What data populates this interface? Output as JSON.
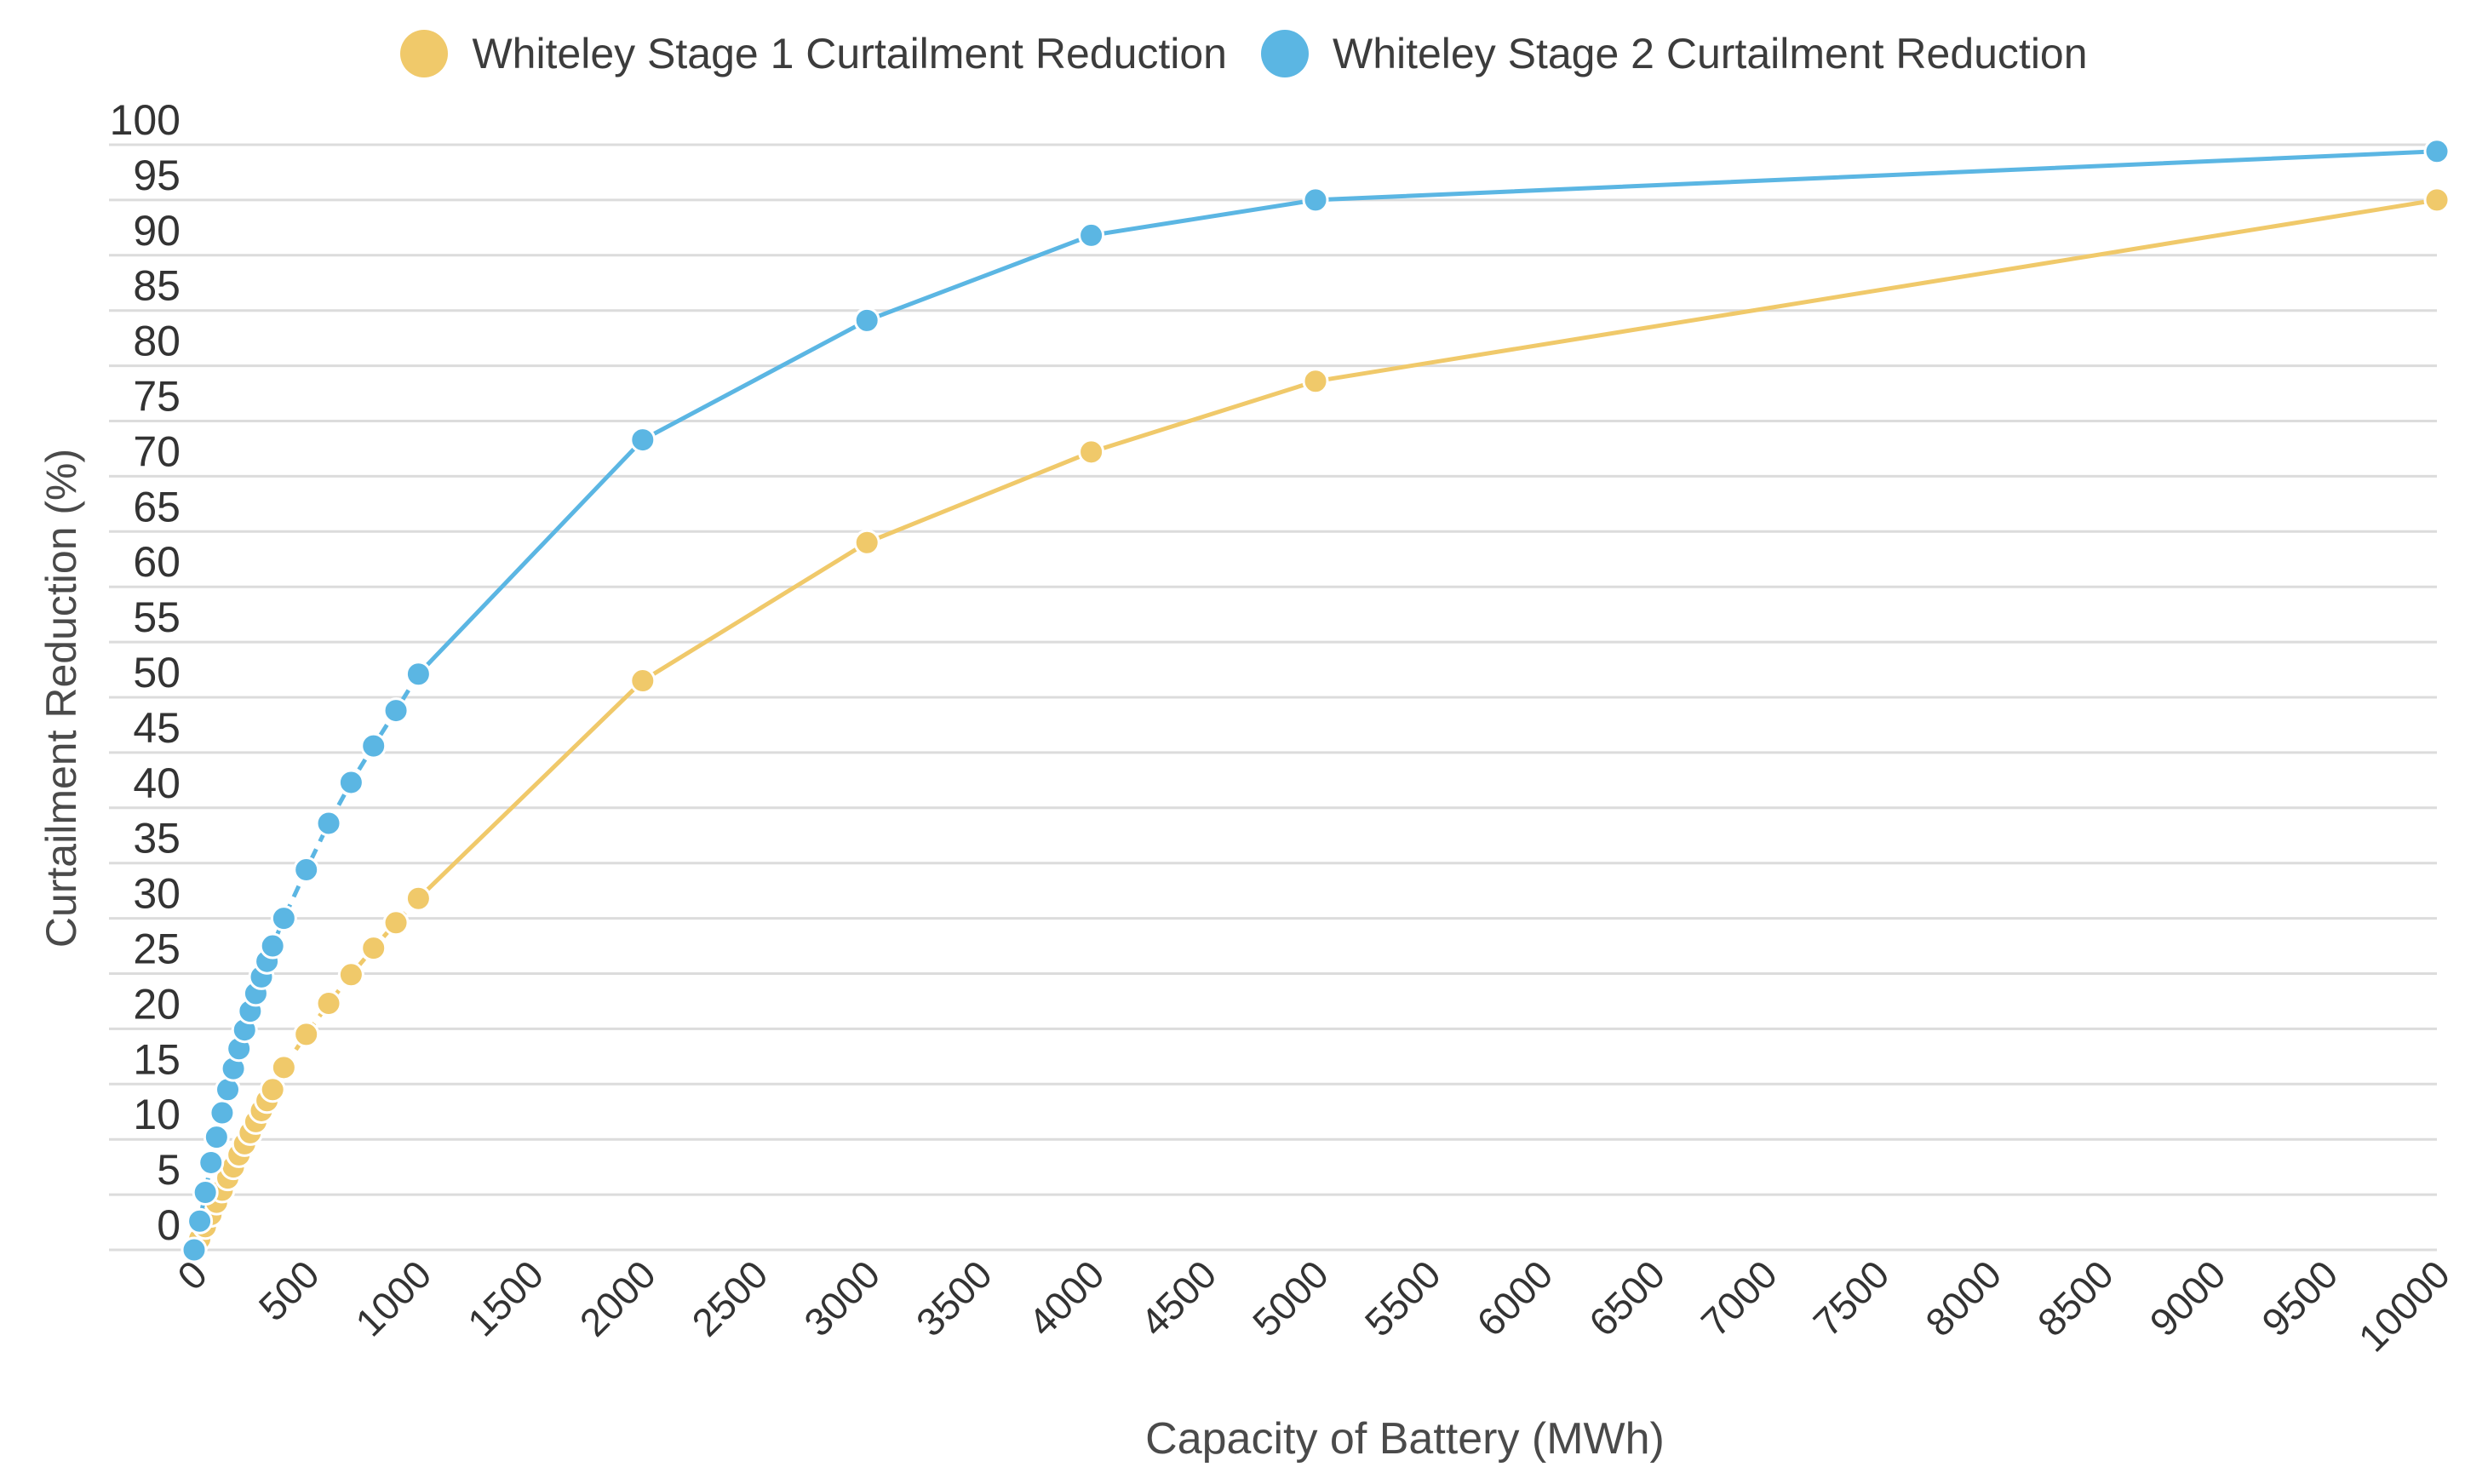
{
  "chart_data": {
    "type": "line",
    "title": "",
    "xlabel": "Capacity of Battery (MWh)",
    "ylabel": "Curtailment Reduction (%)",
    "xlim": [
      0,
      10000
    ],
    "ylim": [
      0,
      100
    ],
    "x_ticks": [
      "0",
      "500",
      "1000",
      "1500",
      "2000",
      "2500",
      "3000",
      "3500",
      "4000",
      "4500",
      "5000",
      "5500",
      "6000",
      "6500",
      "7000",
      "7500",
      "8000",
      "8500",
      "9000",
      "9500",
      "10000"
    ],
    "y_ticks": [
      "0",
      "5",
      "10",
      "15",
      "20",
      "25",
      "30",
      "35",
      "40",
      "45",
      "50",
      "55",
      "60",
      "65",
      "70",
      "75",
      "80",
      "85",
      "90",
      "95",
      "100"
    ],
    "legend_position": "top-center",
    "grid": true,
    "series": [
      {
        "name": "Whiteley Stage 1 Curtailment Reduction",
        "color": "#F0C96A",
        "x": [
          0,
          25,
          50,
          75,
          100,
          125,
          150,
          175,
          200,
          225,
          250,
          275,
          300,
          325,
          350,
          400,
          500,
          600,
          700,
          800,
          900,
          1000,
          2000,
          3000,
          4000,
          5000,
          10000
        ],
        "y": [
          0,
          1,
          2.1,
          3.2,
          4.3,
          5.4,
          6.5,
          7.5,
          8.6,
          9.6,
          10.6,
          11.6,
          12.6,
          13.5,
          14.5,
          16.5,
          19.5,
          22.3,
          24.9,
          27.3,
          29.6,
          31.8,
          51.5,
          64,
          72.2,
          78.6,
          95
        ]
      },
      {
        "name": "Whiteley Stage 2 Curtailment Reduction",
        "color": "#5BB6E3",
        "x": [
          0,
          25,
          50,
          75,
          100,
          125,
          150,
          175,
          200,
          225,
          250,
          275,
          300,
          325,
          350,
          400,
          500,
          600,
          700,
          800,
          900,
          1000,
          2000,
          3000,
          4000,
          5000,
          10000
        ],
        "y": [
          0,
          2.6,
          5.2,
          7.9,
          10.2,
          12.4,
          14.5,
          16.4,
          18.2,
          19.9,
          21.6,
          23.2,
          24.7,
          26.1,
          27.5,
          30,
          34.4,
          38.6,
          42.3,
          45.6,
          48.8,
          52.1,
          73.3,
          84.1,
          91.8,
          95,
          99.4
        ]
      }
    ]
  }
}
